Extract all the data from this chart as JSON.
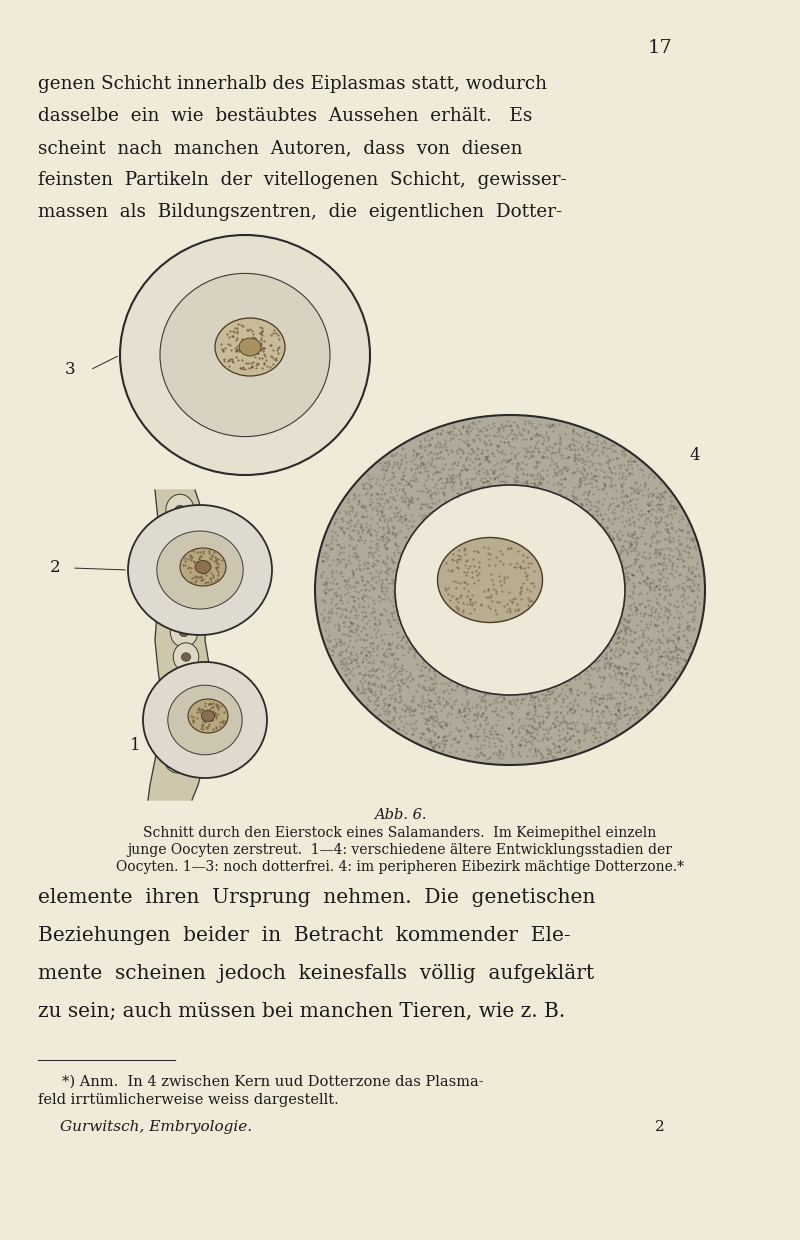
{
  "background_color": "#f0ead8",
  "page_number": "17",
  "top_text_lines": [
    "genen Schicht innerhalb des Eiplasmas statt, wodurch",
    "dasselbe  ein  wie  bestäubtes  Aussehen  erhält.   Es",
    "scheint  nach  manchen  Autoren,  dass  von  diesen",
    "feinsten  Partikeln  der  vitellogenen  Schicht,  gewisser-",
    "massen  als  Bildungszentren,  die  eigentlichen  Dotter-"
  ],
  "caption_line1": "Abb. 6.",
  "caption_line2": "Schnitt durch den Eierstock eines Salamanders.  Im Keimepithel einzeln",
  "caption_line3": "junge Oocyten zerstreut.  1—4: verschiedene ältere Entwicklungsstadien der",
  "caption_line4": "Oocyten. 1—3: noch dotterfrei. 4: im peripheren Eibezirk mächtige Dotterzone.*",
  "bottom_text_lines": [
    "elemente  ihren  Ursprung  nehmen.  Die  genetischen",
    "Beziehungen  beider  in  Betracht  kommender  Ele-",
    "mente  scheinen  jedoch  keinesfalls  völlig  aufgeklärt",
    "zu sein; auch müssen bei manchen Tieren, wie z. B."
  ],
  "footnote_line1": "*) Anm.  In 4 zwischen Kern uud Dotterzone das Plasma-",
  "footnote_line2": "feld irrtümlicherweise weiss dargestellt.",
  "footer_text": "Gurwitsch, Embryologie.",
  "footer_number": "2"
}
